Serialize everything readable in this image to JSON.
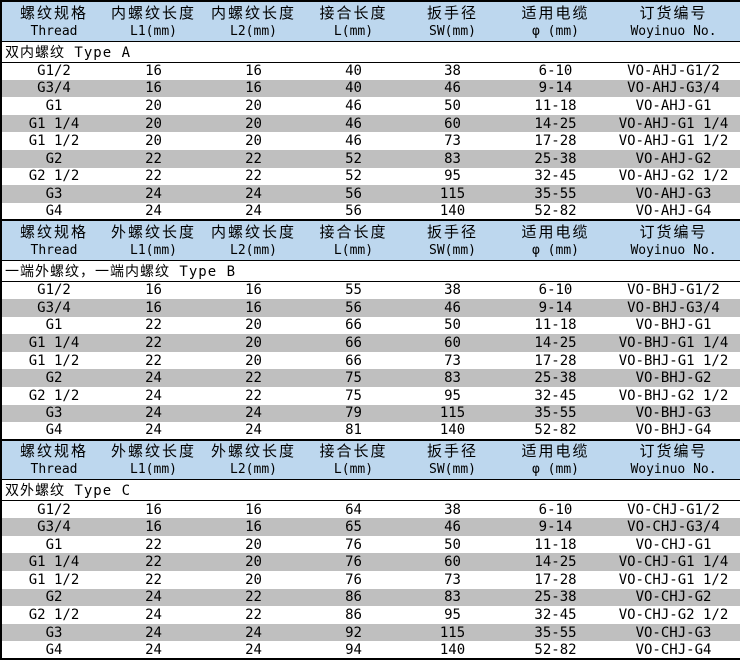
{
  "colors": {
    "header_bg": "#BDD7EE",
    "alt_row_bg": "#BFBFBF",
    "border": "#000000",
    "text": "#000000"
  },
  "table": {
    "columns_en": [
      "Thread",
      "L1(mm)",
      "L2(mm)",
      "L(mm)",
      "SW(mm)",
      "φ (mm)",
      "Woyinuo No."
    ],
    "column_semantics": [
      "thread-spec",
      "l1-length",
      "l2-length",
      "joint-length",
      "wrench-size",
      "cable-diameter",
      "order-no"
    ],
    "sections": [
      {
        "title": "双内螺纹 Type A",
        "headers_zh": [
          "螺纹规格",
          "内螺纹长度",
          "内螺纹长度",
          "接合长度",
          "扳手径",
          "适用电缆",
          "订货编号"
        ],
        "rows": [
          [
            "G1/2",
            "16",
            "16",
            "40",
            "38",
            "6-10",
            "VO-AHJ-G1/2"
          ],
          [
            "G3/4",
            "16",
            "16",
            "40",
            "46",
            "9-14",
            "VO-AHJ-G3/4"
          ],
          [
            "G1",
            "20",
            "20",
            "46",
            "50",
            "11-18",
            "VO-AHJ-G1"
          ],
          [
            "G1 1/4",
            "20",
            "20",
            "46",
            "60",
            "14-25",
            "VO-AHJ-G1 1/4"
          ],
          [
            "G1 1/2",
            "20",
            "20",
            "46",
            "73",
            "17-28",
            "VO-AHJ-G1 1/2"
          ],
          [
            "G2",
            "22",
            "22",
            "52",
            "83",
            "25-38",
            "VO-AHJ-G2"
          ],
          [
            "G2 1/2",
            "22",
            "22",
            "52",
            "95",
            "32-45",
            "VO-AHJ-G2 1/2"
          ],
          [
            "G3",
            "24",
            "24",
            "56",
            "115",
            "35-55",
            "VO-AHJ-G3"
          ],
          [
            "G4",
            "24",
            "24",
            "56",
            "140",
            "52-82",
            "VO-AHJ-G4"
          ]
        ]
      },
      {
        "title": "一端外螺纹，一端内螺纹 Type B",
        "headers_zh": [
          "螺纹规格",
          "外螺纹长度",
          "内螺纹长度",
          "接合长度",
          "扳手径",
          "适用电缆",
          "订货编号"
        ],
        "rows": [
          [
            "G1/2",
            "16",
            "16",
            "55",
            "38",
            "6-10",
            "VO-BHJ-G1/2"
          ],
          [
            "G3/4",
            "16",
            "16",
            "56",
            "46",
            "9-14",
            "VO-BHJ-G3/4"
          ],
          [
            "G1",
            "22",
            "20",
            "66",
            "50",
            "11-18",
            "VO-BHJ-G1"
          ],
          [
            "G1 1/4",
            "22",
            "20",
            "66",
            "60",
            "14-25",
            "VO-BHJ-G1 1/4"
          ],
          [
            "G1 1/2",
            "22",
            "20",
            "66",
            "73",
            "17-28",
            "VO-BHJ-G1 1/2"
          ],
          [
            "G2",
            "24",
            "22",
            "75",
            "83",
            "25-38",
            "VO-BHJ-G2"
          ],
          [
            "G2 1/2",
            "24",
            "22",
            "75",
            "95",
            "32-45",
            "VO-BHJ-G2 1/2"
          ],
          [
            "G3",
            "24",
            "24",
            "79",
            "115",
            "35-55",
            "VO-BHJ-G3"
          ],
          [
            "G4",
            "24",
            "24",
            "81",
            "140",
            "52-82",
            "VO-BHJ-G4"
          ]
        ]
      },
      {
        "title": "双外螺纹 Type C",
        "headers_zh": [
          "螺纹规格",
          "外螺纹长度",
          "外螺纹长度",
          "接合长度",
          "扳手径",
          "适用电缆",
          "订货编号"
        ],
        "rows": [
          [
            "G1/2",
            "16",
            "16",
            "64",
            "38",
            "6-10",
            "VO-CHJ-G1/2"
          ],
          [
            "G3/4",
            "16",
            "16",
            "65",
            "46",
            "9-14",
            "VO-CHJ-G3/4"
          ],
          [
            "G1",
            "22",
            "20",
            "76",
            "50",
            "11-18",
            "VO-CHJ-G1"
          ],
          [
            "G1 1/4",
            "22",
            "20",
            "76",
            "60",
            "14-25",
            "VO-CHJ-G1 1/4"
          ],
          [
            "G1 1/2",
            "22",
            "20",
            "76",
            "73",
            "17-28",
            "VO-CHJ-G1 1/2"
          ],
          [
            "G2",
            "24",
            "22",
            "86",
            "83",
            "25-38",
            "VO-CHJ-G2"
          ],
          [
            "G2 1/2",
            "24",
            "22",
            "86",
            "95",
            "32-45",
            "VO-CHJ-G2 1/2"
          ],
          [
            "G3",
            "24",
            "24",
            "92",
            "115",
            "35-55",
            "VO-CHJ-G3"
          ],
          [
            "G4",
            "24",
            "24",
            "94",
            "140",
            "52-82",
            "VO-CHJ-G4"
          ]
        ]
      }
    ]
  }
}
